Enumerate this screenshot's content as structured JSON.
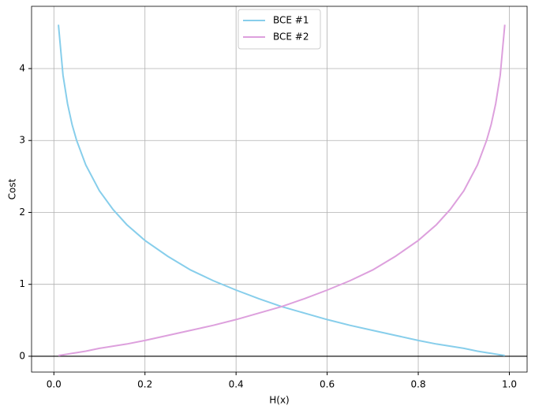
{
  "chart_data": {
    "type": "line",
    "xlabel": "H(x)",
    "ylabel": "Cost",
    "x": [
      0.01,
      0.02,
      0.03,
      0.04,
      0.05,
      0.07,
      0.1,
      0.13,
      0.16,
      0.2,
      0.25,
      0.3,
      0.35,
      0.4,
      0.45,
      0.5,
      0.55,
      0.6,
      0.65,
      0.7,
      0.75,
      0.8,
      0.84,
      0.87,
      0.9,
      0.93,
      0.95,
      0.96,
      0.97,
      0.98,
      0.99
    ],
    "series": [
      {
        "name": "BCE #1",
        "color": "#87ceeb",
        "values": [
          4.61,
          3.91,
          3.51,
          3.22,
          3.0,
          2.66,
          2.3,
          2.04,
          1.83,
          1.61,
          1.39,
          1.2,
          1.05,
          0.92,
          0.8,
          0.69,
          0.6,
          0.51,
          0.43,
          0.36,
          0.29,
          0.22,
          0.17,
          0.14,
          0.11,
          0.07,
          0.05,
          0.04,
          0.03,
          0.02,
          0.01
        ]
      },
      {
        "name": "BCE #2",
        "color": "#dda0dd",
        "values": [
          0.01,
          0.02,
          0.03,
          0.04,
          0.05,
          0.07,
          0.11,
          0.14,
          0.17,
          0.22,
          0.29,
          0.36,
          0.43,
          0.51,
          0.6,
          0.69,
          0.8,
          0.92,
          1.05,
          1.2,
          1.39,
          1.61,
          1.83,
          2.04,
          2.3,
          2.66,
          3.0,
          3.22,
          3.51,
          3.91,
          4.61
        ]
      }
    ],
    "hline": 0,
    "xlim": [
      -0.049,
      1.039
    ],
    "ylim": [
      -0.22,
      4.866
    ],
    "xticks": [
      {
        "value": 0,
        "label": "0.0"
      },
      0.2,
      0.4,
      0.6,
      0.8,
      {
        "value": 1,
        "label": "1.0"
      }
    ],
    "yticks": [
      0,
      1,
      2,
      3,
      4
    ],
    "grid": true,
    "legend": "upper center"
  }
}
